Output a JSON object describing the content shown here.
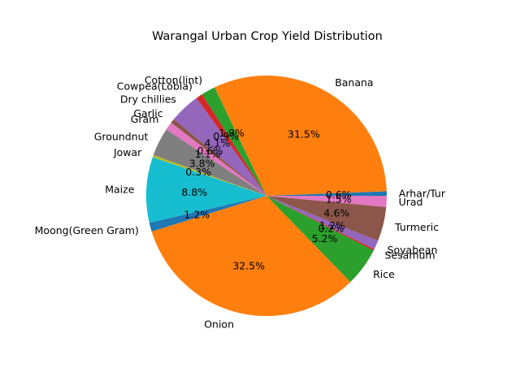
{
  "chart_data": {
    "type": "pie",
    "title": "Warangal Urban Crop Yield Distribution",
    "slices": [
      {
        "label": "Arhar/Tur",
        "value": 0.6,
        "pct_label": "0.6%",
        "color": "#1f77b4"
      },
      {
        "label": "Banana",
        "value": 31.5,
        "pct_label": "31.5%",
        "color": "#ff7f0e"
      },
      {
        "label": "Cotton(lint)",
        "value": 1.9,
        "pct_label": "1.9%",
        "color": "#2ca02c"
      },
      {
        "label": "Cowpea(Lobia)",
        "value": 0.9,
        "pct_label": "0.9%",
        "color": "#d62728"
      },
      {
        "label": "Dry chillies",
        "value": 4.1,
        "pct_label": "4.1%",
        "color": "#9467bd"
      },
      {
        "label": "Garlic",
        "value": 0.6,
        "pct_label": "0.6%",
        "color": "#8c564b"
      },
      {
        "label": "Gram",
        "value": 1.1,
        "pct_label": "1.1%",
        "color": "#e377c2"
      },
      {
        "label": "Groundnut",
        "value": 3.8,
        "pct_label": "3.8%",
        "color": "#7f7f7f"
      },
      {
        "label": "Jowar",
        "value": 0.3,
        "pct_label": "0.3%",
        "color": "#bcbd22"
      },
      {
        "label": "Maize",
        "value": 8.8,
        "pct_label": "8.8%",
        "color": "#17becf"
      },
      {
        "label": "Moong(Green Gram)",
        "value": 1.2,
        "pct_label": "1.2%",
        "color": "#1f77b4"
      },
      {
        "label": "Onion",
        "value": 32.5,
        "pct_label": "32.5%",
        "color": "#ff7f0e"
      },
      {
        "label": "Rice",
        "value": 5.2,
        "pct_label": "5.2%",
        "color": "#2ca02c"
      },
      {
        "label": "Sesamum",
        "value": 0.2,
        "pct_label": "0.2%",
        "color": "#d62728"
      },
      {
        "label": "Soyabean",
        "value": 1.2,
        "pct_label": "1.2%",
        "color": "#9467bd"
      },
      {
        "label": "Turmeric",
        "value": 4.6,
        "pct_label": "4.6%",
        "color": "#8c564b"
      },
      {
        "label": "Urad",
        "value": 1.5,
        "pct_label": "1.5%",
        "color": "#e377c2"
      }
    ],
    "start_angle": "0 degrees (3 o'clock)",
    "direction": "counterclockwise"
  }
}
